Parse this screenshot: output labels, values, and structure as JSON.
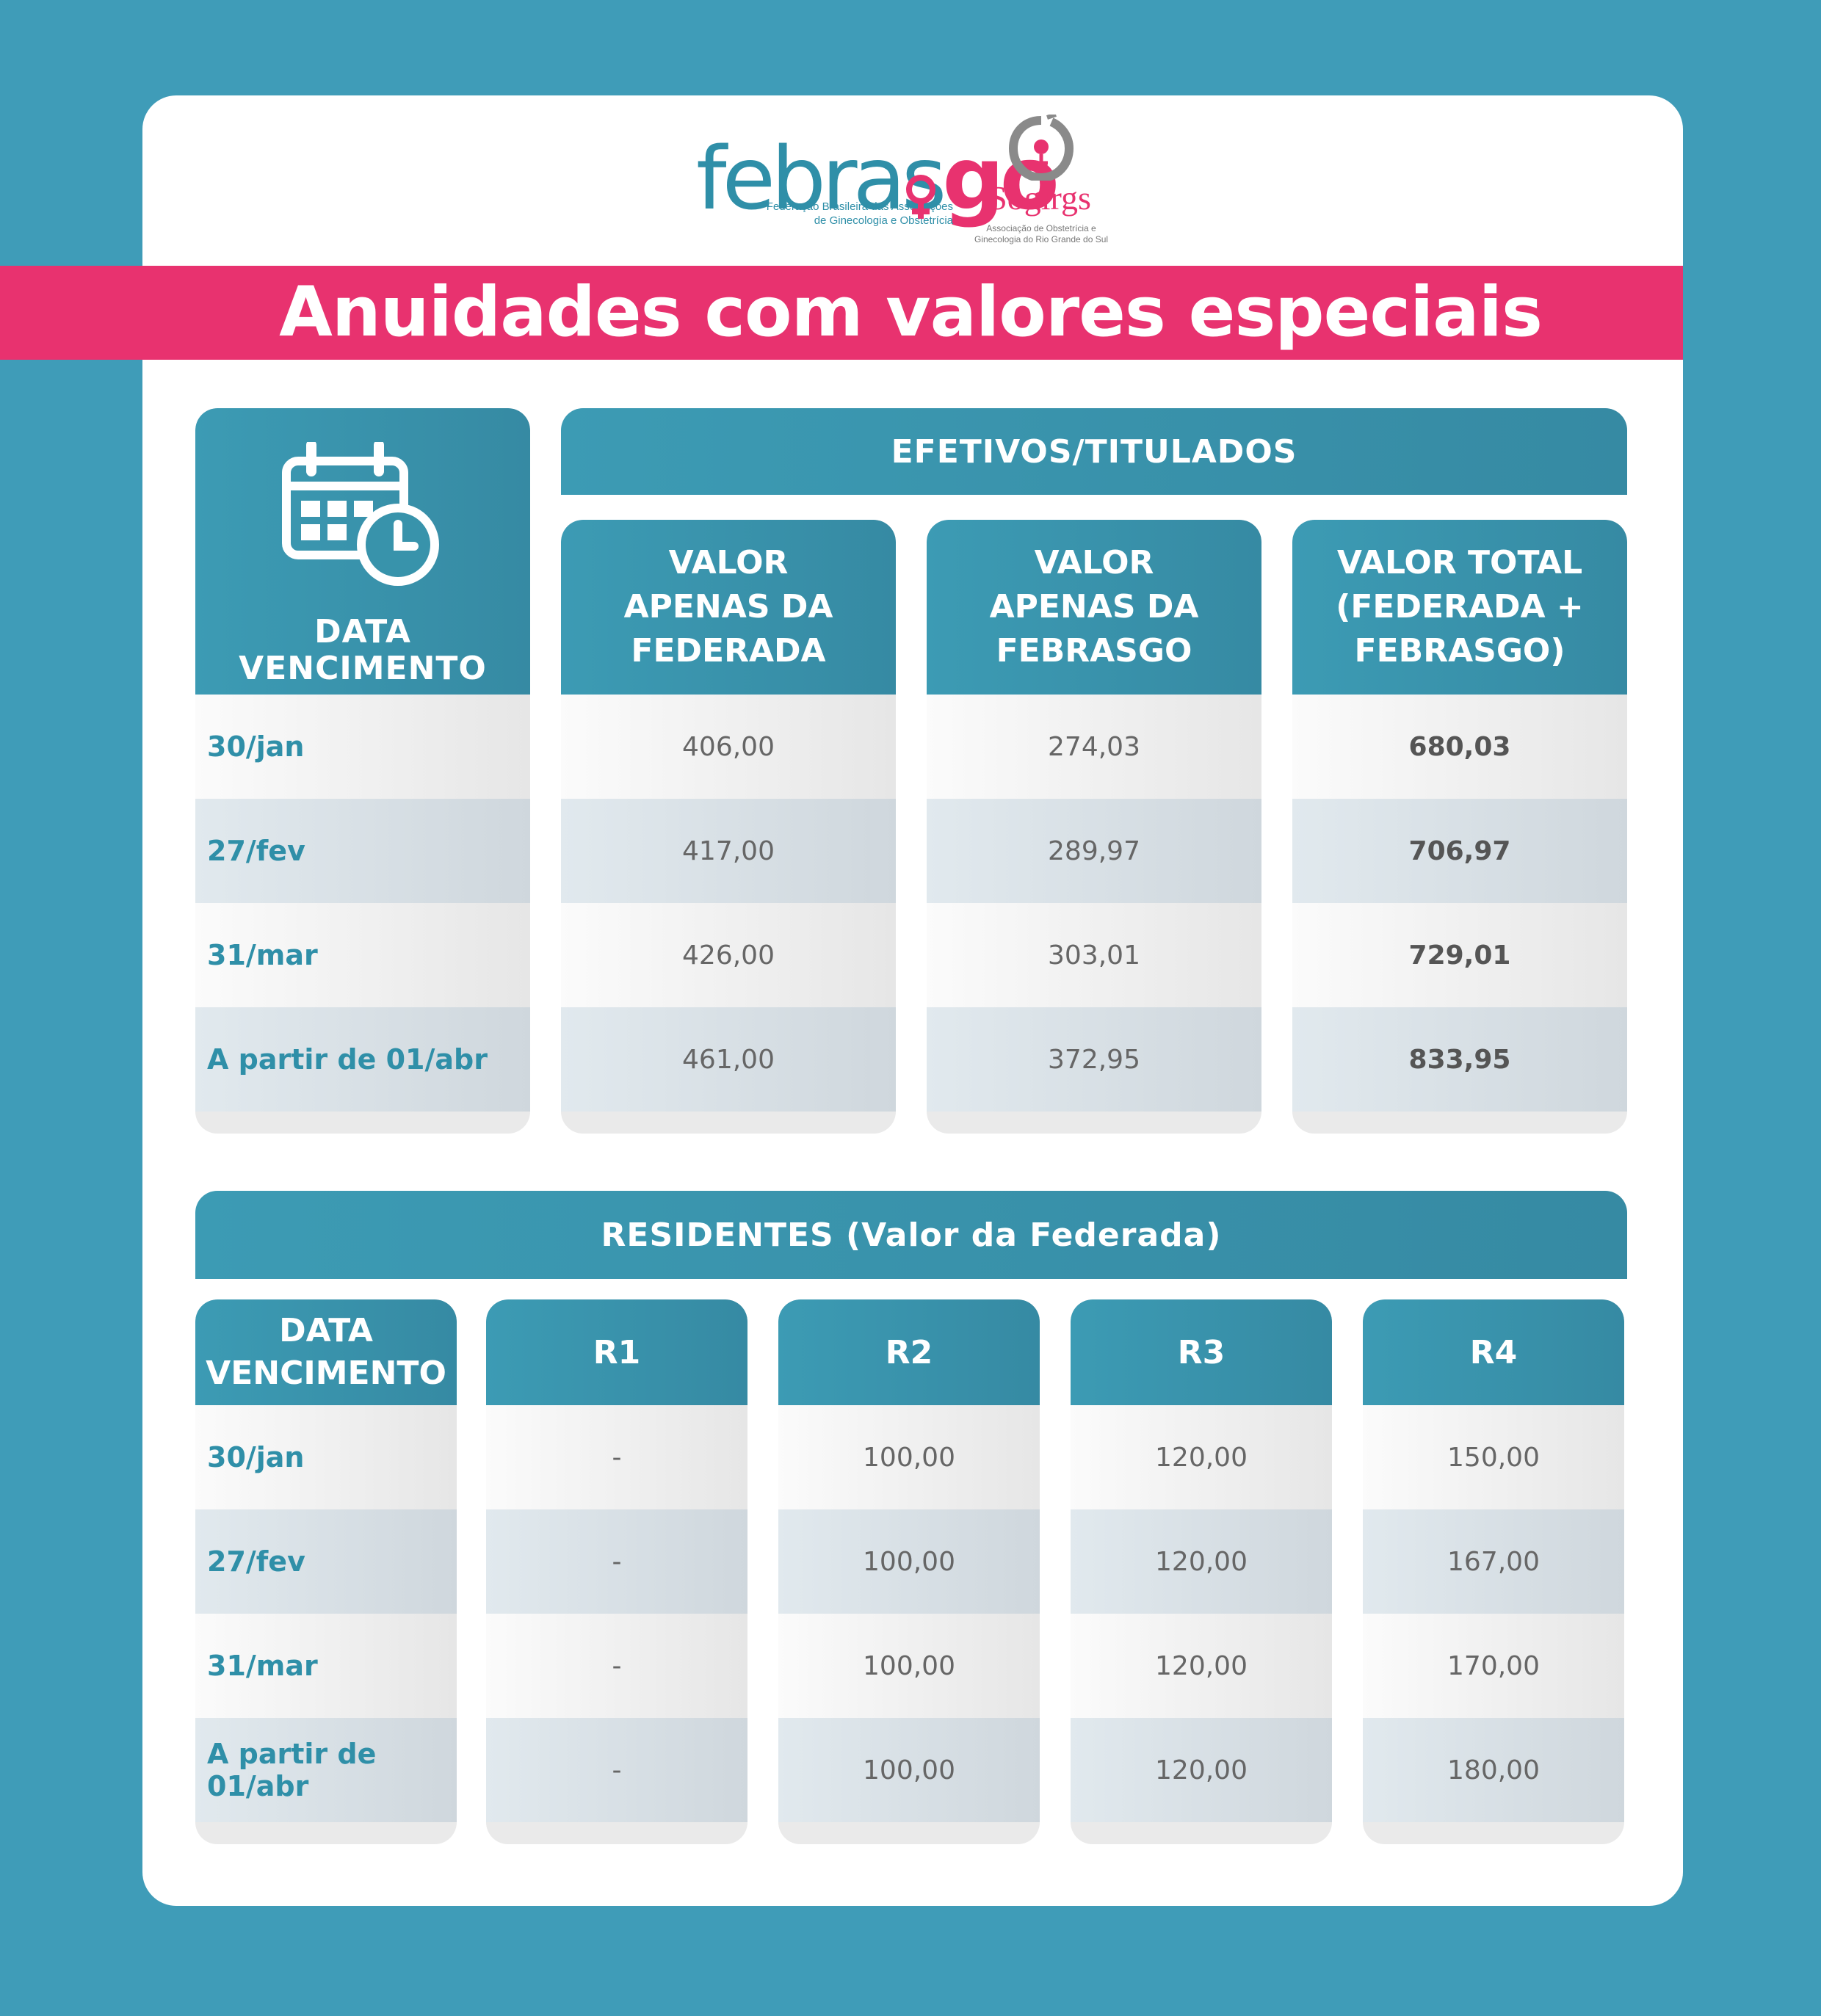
{
  "logos": {
    "febrasgo": {
      "word_prefix": "febras",
      "word_suffix": "go",
      "subtitle": "Federação Brasileira das Associações de Ginecologia e Obstetrícia"
    },
    "sogirgs": {
      "word": "Sogirgs",
      "subtitle": "Associação de Obstetrícia e Ginecologia do Rio Grande do Sul"
    }
  },
  "title": "Anuidades com valores especiais",
  "colors": {
    "background": "#3f9cb8",
    "accent": "#e8326f",
    "header": "#3a94ad",
    "date_text": "#2f8fa8"
  },
  "efetivos": {
    "group_header": "EFETIVOS/TITULADOS",
    "date_header": "DATA VENCIMENTO",
    "date_icon": "calendar-clock-icon",
    "columns": [
      "VALOR APENAS DA FEDERADA",
      "VALOR APENAS DA FEBRASGO",
      "VALOR TOTAL (FEDERADA + FEBRASGO)"
    ],
    "rows": [
      {
        "date": "30/jan",
        "federada": "406,00",
        "febrasgo": "274,03",
        "total": "680,03"
      },
      {
        "date": "27/fev",
        "federada": "417,00",
        "febrasgo": "289,97",
        "total": "706,97"
      },
      {
        "date": "31/mar",
        "federada": "426,00",
        "febrasgo": "303,01",
        "total": "729,01"
      },
      {
        "date": "A partir de 01/abr",
        "federada": "461,00",
        "febrasgo": "372,95",
        "total": "833,95"
      }
    ]
  },
  "residentes": {
    "group_header": "RESIDENTES (Valor da Federada)",
    "date_header": "DATA VENCIMENTO",
    "columns": [
      "R1",
      "R2",
      "R3",
      "R4"
    ],
    "rows": [
      {
        "date": "30/jan",
        "r1": "-",
        "r2": "100,00",
        "r3": "120,00",
        "r4": "150,00"
      },
      {
        "date": "27/fev",
        "r1": "-",
        "r2": "100,00",
        "r3": "120,00",
        "r4": "167,00"
      },
      {
        "date": "31/mar",
        "r1": "-",
        "r2": "100,00",
        "r3": "120,00",
        "r4": "170,00"
      },
      {
        "date": "A partir de 01/abr",
        "r1": "-",
        "r2": "100,00",
        "r3": "120,00",
        "r4": "180,00"
      }
    ]
  }
}
